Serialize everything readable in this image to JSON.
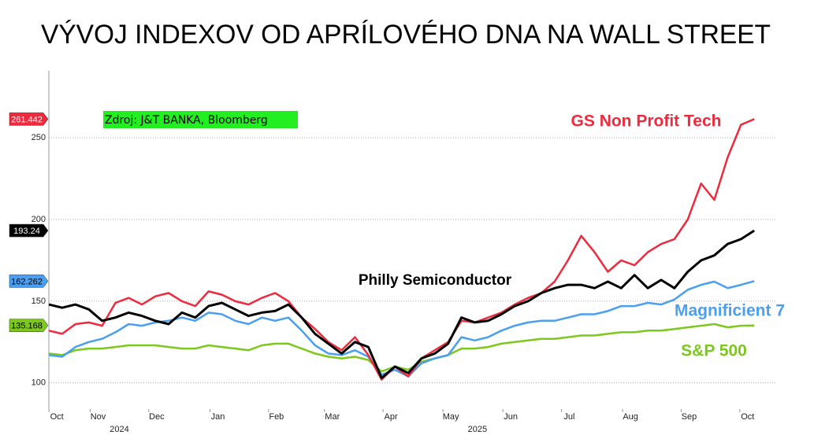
{
  "chart_data": {
    "type": "line",
    "title": "VÝVOJ INDEXOV OD APRÍLOVÉHO DNA NA WALL STREET",
    "source": "Zdroj: J&T BANKA, Bloomberg",
    "x": [
      0,
      1,
      2,
      3,
      4,
      5,
      6,
      7,
      8,
      9,
      10,
      11,
      12,
      13,
      14,
      15,
      16,
      17,
      18,
      19,
      20,
      21,
      22,
      23,
      24,
      25,
      26,
      27,
      28,
      29,
      30,
      31,
      32,
      33,
      34,
      35,
      36,
      37,
      38,
      39,
      40,
      41,
      42,
      43,
      44,
      45,
      46,
      47,
      48,
      49,
      50,
      51,
      52,
      53
    ],
    "xlim": [
      0,
      55
    ],
    "xticks": [
      {
        "value": 0.6,
        "label": "Oct"
      },
      {
        "value": 3.7,
        "label": "Nov"
      },
      {
        "value": 8.1,
        "label": "Dec"
      },
      {
        "value": 12.7,
        "label": "Jan"
      },
      {
        "value": 17.1,
        "label": "Feb"
      },
      {
        "value": 21.3,
        "label": "Mar"
      },
      {
        "value": 25.7,
        "label": "Apr"
      },
      {
        "value": 30.2,
        "label": "May"
      },
      {
        "value": 34.7,
        "label": "Jun"
      },
      {
        "value": 39.1,
        "label": "Jul"
      },
      {
        "value": 43.7,
        "label": "Aug"
      },
      {
        "value": 48.1,
        "label": "Sep"
      },
      {
        "value": 52.5,
        "label": "Oct"
      }
    ],
    "year_labels": [
      {
        "value": 5.3,
        "label": "2024"
      },
      {
        "value": 32.2,
        "label": "2025"
      }
    ],
    "ylim": [
      84,
      291
    ],
    "yticks": [
      100,
      150,
      200,
      250
    ],
    "grid": true,
    "series": [
      {
        "name": "GS Non Profit Tech",
        "color": "#ee2a3e",
        "values": [
          132,
          130,
          136,
          137,
          135,
          149,
          152,
          148,
          153,
          155,
          150,
          147,
          156,
          154,
          150,
          148,
          152,
          155,
          150,
          140,
          133,
          125,
          120,
          128,
          117,
          102,
          110,
          104,
          115,
          120,
          125,
          138,
          137,
          140,
          143,
          148,
          152,
          155,
          162,
          175,
          190,
          180,
          168,
          175,
          172,
          180,
          185,
          188,
          200,
          222,
          212,
          238,
          258,
          261.442
        ]
      },
      {
        "name": "Philly Semiconductor",
        "color": "#000000",
        "values": [
          148,
          146,
          148,
          145,
          138,
          140,
          143,
          141,
          138,
          136,
          143,
          140,
          147,
          149,
          145,
          141,
          143,
          144,
          148,
          140,
          130,
          124,
          118,
          125,
          122,
          103,
          110,
          106,
          115,
          118,
          124,
          140,
          137,
          138,
          142,
          147,
          150,
          155,
          158,
          160,
          160,
          158,
          162,
          158,
          166,
          158,
          163,
          158,
          168,
          175,
          178,
          185,
          188,
          193.24
        ]
      },
      {
        "name": "Magnificient 7",
        "color": "#4a9ff0",
        "values": [
          117,
          116,
          122,
          125,
          127,
          131,
          136,
          135,
          137,
          138,
          140,
          138,
          143,
          142,
          138,
          136,
          140,
          138,
          140,
          132,
          123,
          118,
          117,
          120,
          116,
          105,
          108,
          104,
          112,
          115,
          117,
          128,
          126,
          128,
          132,
          135,
          137,
          138,
          138,
          140,
          142,
          142,
          144,
          147,
          147,
          149,
          148,
          151,
          157,
          160,
          162,
          158,
          160,
          162.262
        ]
      },
      {
        "name": "S&P 500",
        "color": "#7cc81c",
        "values": [
          118,
          117,
          120,
          121,
          121,
          122,
          123,
          123,
          123,
          122,
          121,
          121,
          123,
          122,
          121,
          120,
          123,
          124,
          124,
          121,
          118,
          116,
          115,
          116,
          114,
          107,
          110,
          108,
          113,
          115,
          117,
          121,
          121,
          122,
          124,
          125,
          126,
          127,
          127,
          128,
          129,
          129,
          130,
          131,
          131,
          132,
          132,
          133,
          134,
          135,
          136,
          134,
          135,
          135.168
        ]
      }
    ]
  }
}
